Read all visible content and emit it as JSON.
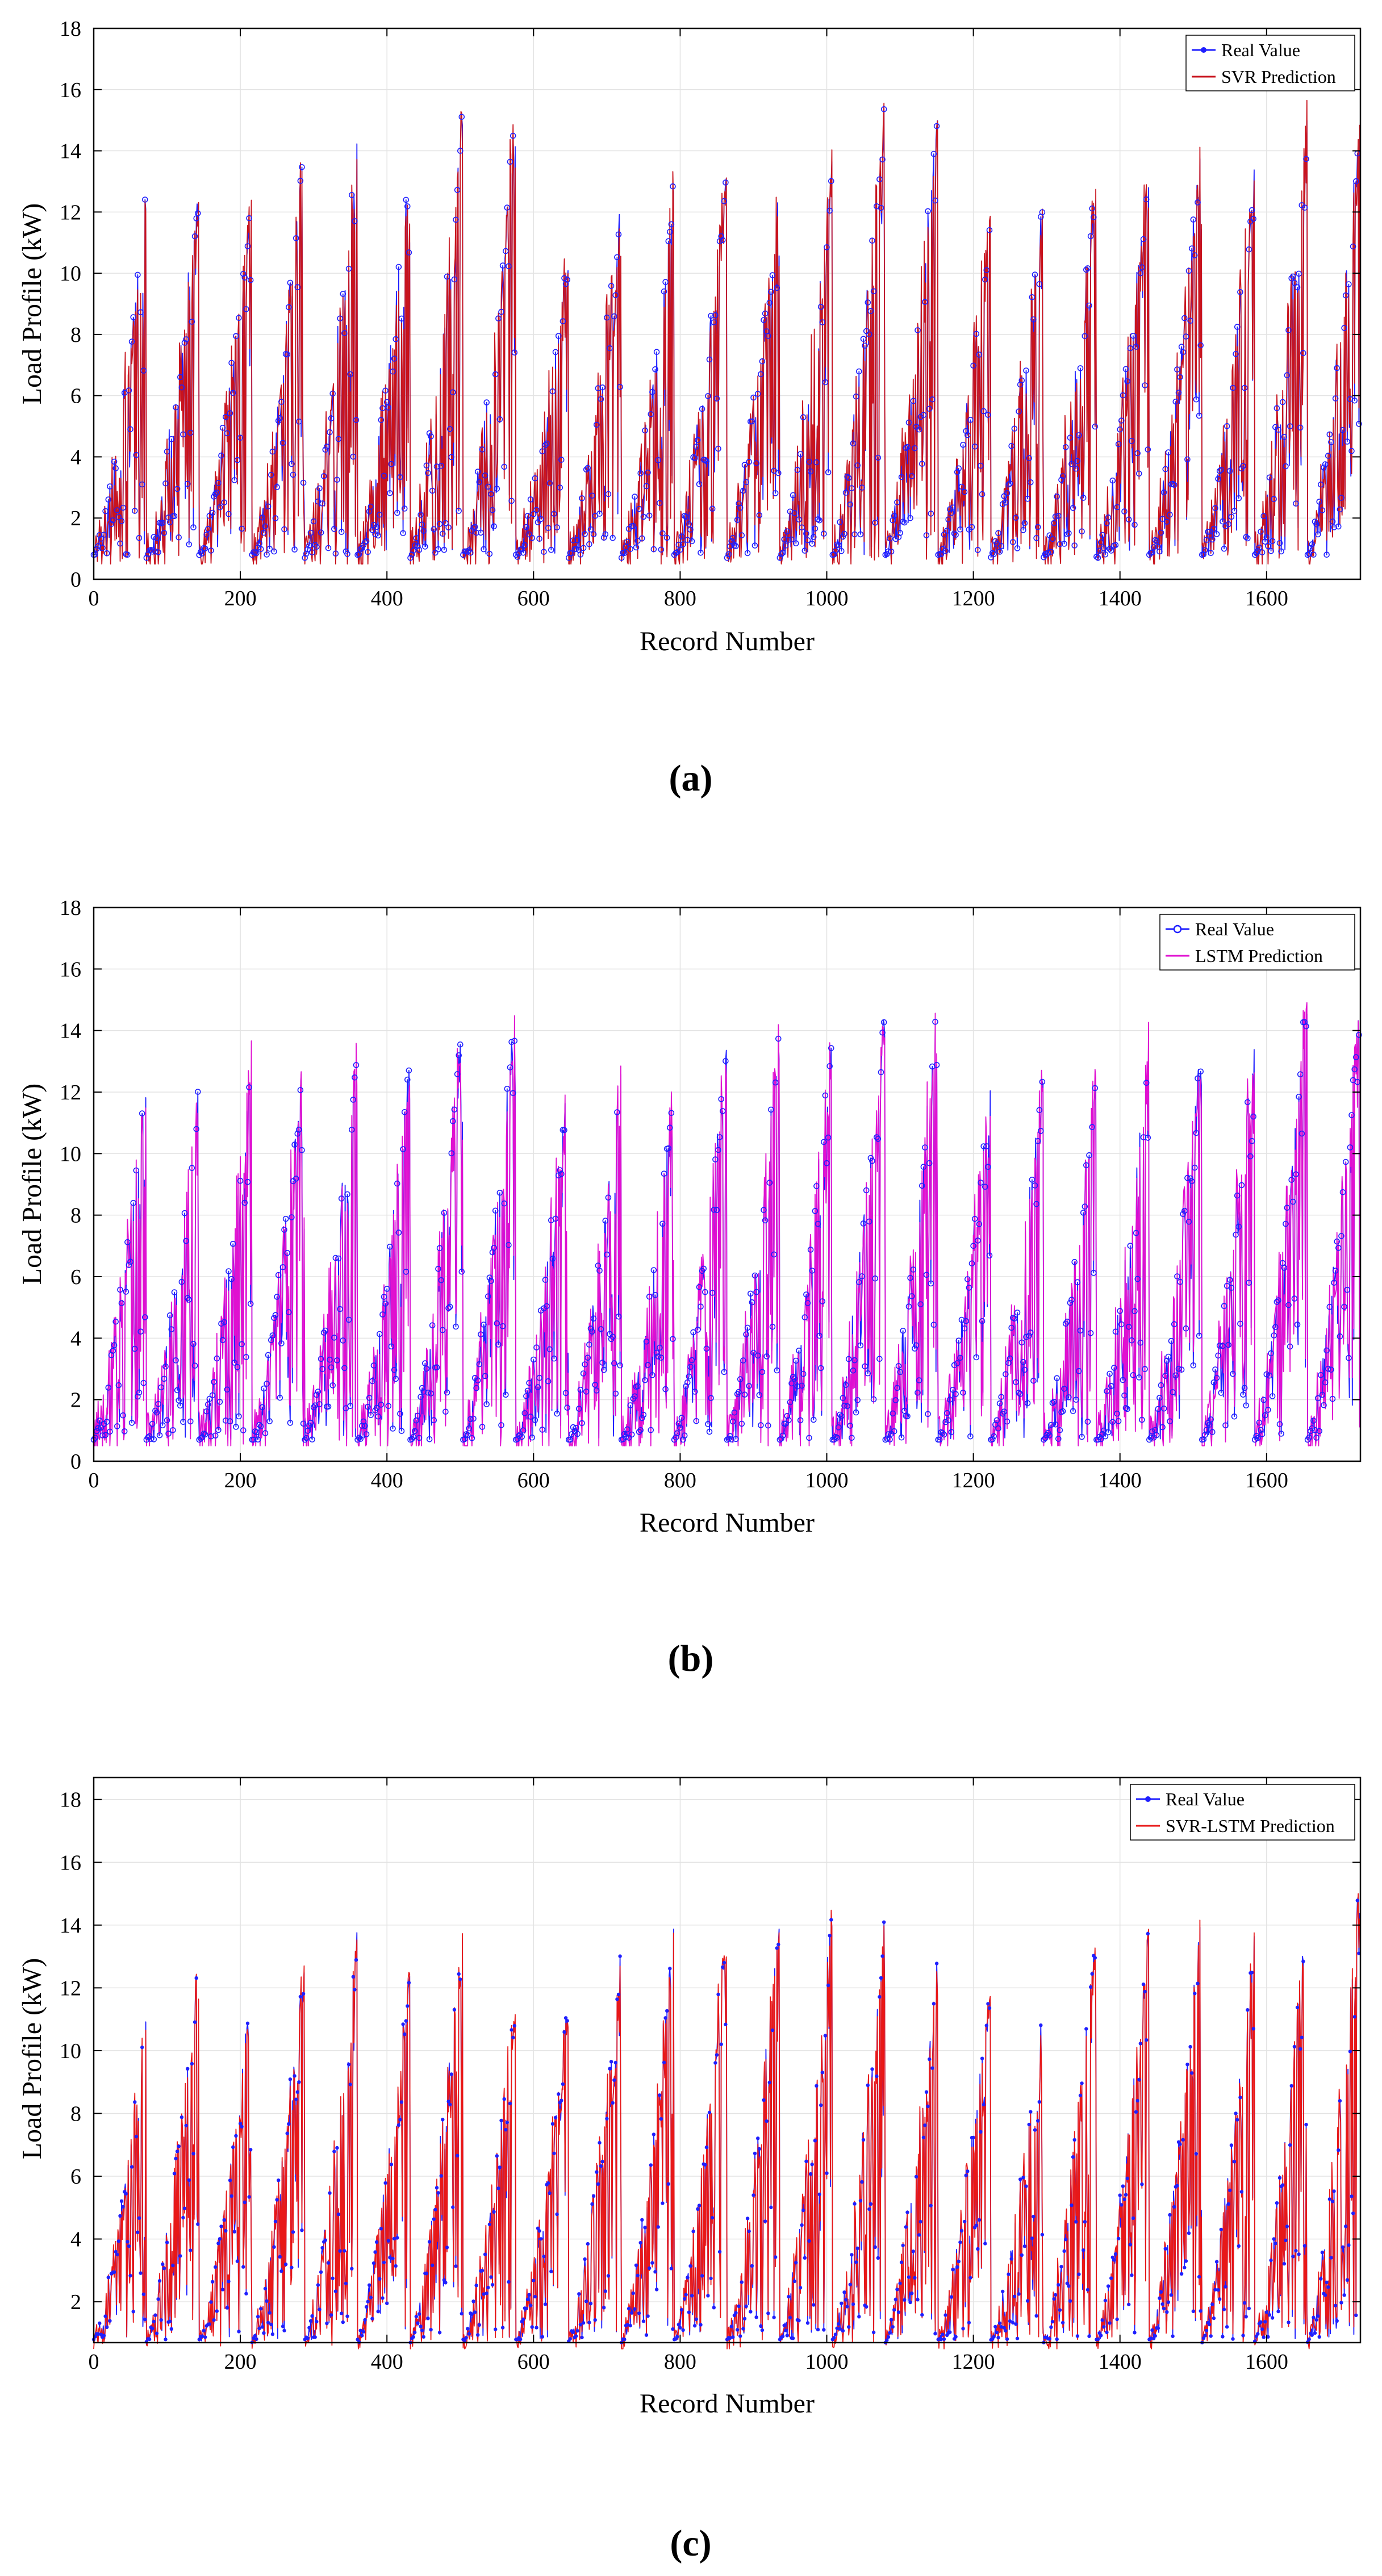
{
  "chart_data": [
    {
      "type": "line",
      "panel_label": "(a)",
      "xlabel": "Record Number",
      "ylabel": "Load Profile (kW)",
      "xlim": [
        0,
        1728
      ],
      "ylim": [
        0,
        18
      ],
      "xticks": [
        0,
        200,
        400,
        600,
        800,
        1000,
        1200,
        1400,
        1600
      ],
      "yticks": [
        0,
        2,
        4,
        6,
        8,
        10,
        12,
        14,
        16,
        18
      ],
      "grid": true,
      "legend_position": "top-right",
      "series": [
        {
          "name": "Real Value",
          "color": "#1f1fff",
          "marker": "circle"
        },
        {
          "name": "SVR Prediction",
          "color": "#c8141e",
          "marker": "none"
        }
      ],
      "generation": {
        "seed": 11,
        "n_points": 1728,
        "cycle_length": 72,
        "cycle_peaks": [
          13.0,
          13.4,
          13.2,
          14.5,
          14.6,
          13.9,
          15.8,
          15.8,
          11.0,
          12.8,
          13.5,
          13.5,
          13.6,
          14.0,
          16.0,
          16.2,
          12.4,
          13.0,
          13.5,
          13.9,
          14.8,
          14.0,
          15.9,
          15.4
        ],
        "base_min": 0.8,
        "pred_noise": 0.8
      }
    },
    {
      "type": "line",
      "panel_label": "(b)",
      "xlabel": "Record Number",
      "ylabel": "Load Profile (kW)",
      "xlim": [
        0,
        1728
      ],
      "ylim": [
        0,
        18
      ],
      "xticks": [
        0,
        200,
        400,
        600,
        800,
        1000,
        1200,
        1400,
        1600
      ],
      "yticks": [
        0,
        2,
        4,
        6,
        8,
        10,
        12,
        14,
        16,
        18
      ],
      "grid": true,
      "legend_position": "top-right",
      "series": [
        {
          "name": "Real Value",
          "color": "#1f1fff",
          "marker": "circle"
        },
        {
          "name": "LSTM Prediction",
          "color": "#e010d0",
          "marker": "none"
        }
      ],
      "generation": {
        "seed": 23,
        "n_points": 1728,
        "cycle_length": 72,
        "cycle_peaks": [
          12.8,
          12.5,
          13.3,
          13.9,
          14.0,
          13.4,
          14.7,
          15.2,
          12.8,
          13.1,
          12.3,
          14.0,
          14.6,
          14.3,
          15.4,
          15.6,
          12.3,
          13.3,
          13.2,
          14.0,
          14.1,
          14.7,
          16.0,
          15.6
        ],
        "base_min": 0.7,
        "pred_noise": 0.9
      }
    },
    {
      "type": "line",
      "panel_label": "(c)",
      "xlabel": "Record Number",
      "ylabel": "Load Profile (kW)",
      "xlim": [
        0,
        1728
      ],
      "ylim": [
        0.7,
        18.7
      ],
      "xticks": [
        0,
        200,
        400,
        600,
        800,
        1000,
        1200,
        1400,
        1600
      ],
      "yticks": [
        2,
        4,
        6,
        8,
        10,
        12,
        14,
        16,
        18
      ],
      "grid": true,
      "legend_position": "top-right",
      "series": [
        {
          "name": "Real Value",
          "color": "#1f1fff",
          "marker": "dot"
        },
        {
          "name": "SVR-LSTM Prediction",
          "color": "#e81818",
          "marker": "none"
        }
      ],
      "generation": {
        "seed": 37,
        "n_points": 1728,
        "cycle_length": 72,
        "cycle_peaks": [
          11.3,
          13.4,
          12.4,
          13.5,
          14.0,
          13.2,
          14.3,
          12.1,
          12.0,
          13.5,
          14.6,
          14.8,
          14.6,
          14.8,
          14.8,
          13.6,
          12.8,
          11.9,
          14.0,
          14.4,
          14.8,
          14.4,
          15.0,
          15.9
        ],
        "base_min": 0.8,
        "pred_noise": 0.35
      }
    }
  ]
}
